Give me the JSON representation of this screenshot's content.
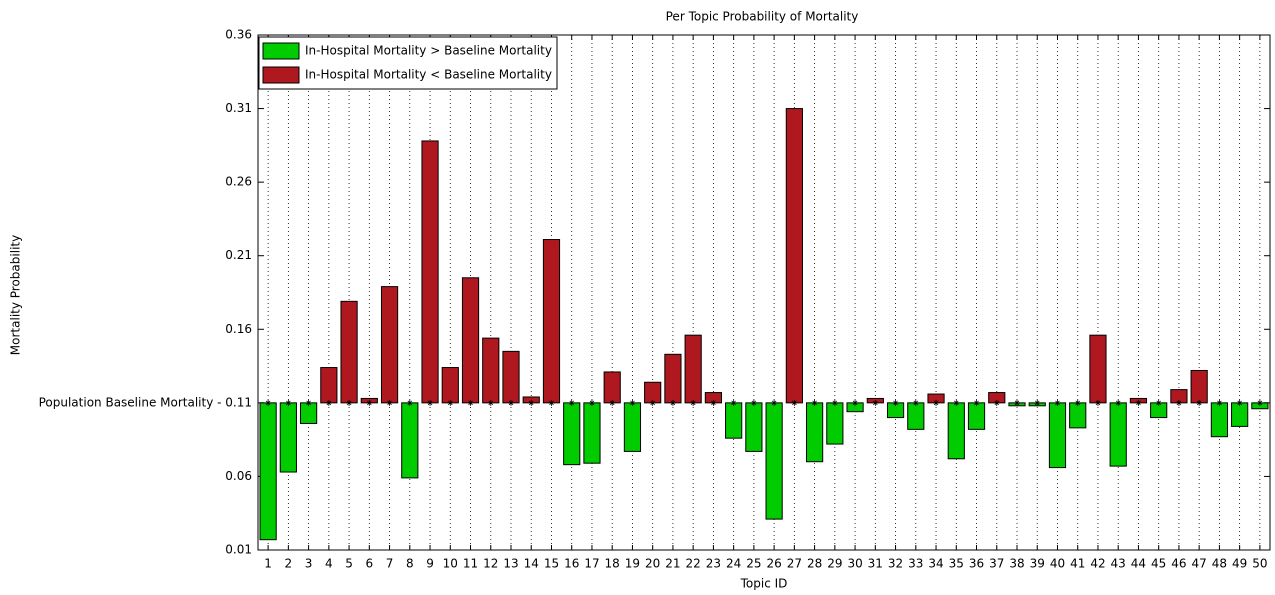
{
  "chart_data": {
    "type": "bar",
    "title": "Per Topic Probability of Mortality",
    "xlabel": "Topic ID",
    "ylabel": "Mortality Probability",
    "categories": [
      "1",
      "2",
      "3",
      "4",
      "5",
      "6",
      "7",
      "8",
      "9",
      "10",
      "11",
      "12",
      "13",
      "14",
      "15",
      "16",
      "17",
      "18",
      "19",
      "20",
      "21",
      "22",
      "23",
      "24",
      "25",
      "26",
      "27",
      "28",
      "29",
      "30",
      "31",
      "32",
      "33",
      "34",
      "35",
      "36",
      "37",
      "38",
      "39",
      "40",
      "41",
      "42",
      "43",
      "44",
      "45",
      "46",
      "47",
      "48",
      "49",
      "50"
    ],
    "series": [
      {
        "name": "In-Hospital Mortality > Baseline Mortality",
        "color": "#00cc00",
        "values": [
          0.017,
          0.063,
          0.096,
          null,
          null,
          null,
          null,
          0.059,
          null,
          null,
          null,
          null,
          null,
          null,
          null,
          0.068,
          0.069,
          null,
          0.077,
          null,
          null,
          null,
          null,
          0.086,
          0.077,
          0.031,
          null,
          0.07,
          0.082,
          0.104,
          null,
          0.1,
          0.092,
          null,
          0.072,
          0.092,
          null,
          0.108,
          0.108,
          0.066,
          0.093,
          null,
          0.067,
          null,
          0.1,
          null,
          null,
          0.087,
          0.094,
          0.106
        ]
      },
      {
        "name": "In-Hospital Mortality < Baseline Mortality",
        "color": "#b01820",
        "values": [
          null,
          null,
          null,
          0.134,
          0.179,
          0.113,
          0.189,
          null,
          0.288,
          0.134,
          0.195,
          0.154,
          0.145,
          0.114,
          0.221,
          null,
          null,
          0.131,
          null,
          0.124,
          0.143,
          0.156,
          0.117,
          null,
          null,
          null,
          0.31,
          null,
          null,
          null,
          0.113,
          null,
          null,
          0.116,
          null,
          null,
          0.117,
          null,
          null,
          null,
          null,
          0.156,
          null,
          0.113,
          null,
          0.119,
          0.132,
          null,
          null,
          null
        ]
      }
    ],
    "ylim": [
      0.01,
      0.36
    ],
    "yticks": [
      0.01,
      0.06,
      {
        "value": 0.11,
        "label": "Population Baseline Mortality - 0.11"
      },
      0.16,
      0.21,
      0.26,
      0.31,
      0.36
    ],
    "xgrid": true,
    "legend": "upper left"
  }
}
